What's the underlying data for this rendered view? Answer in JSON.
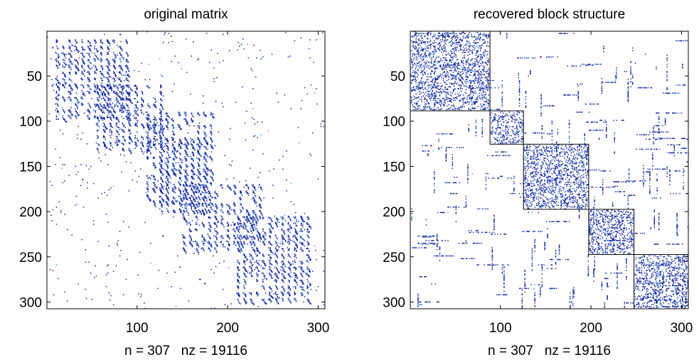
{
  "chart_data": [
    {
      "type": "heatmap",
      "title": "original matrix",
      "xlabel": "n = 307   nz = 19116",
      "ylabel": "",
      "n": 307,
      "nz": 19116,
      "xlim": [
        0.5,
        307.5
      ],
      "ylim": [
        0.5,
        307.5
      ],
      "y_reversed": true,
      "xticks": [
        100,
        200,
        300
      ],
      "yticks": [
        50,
        100,
        150,
        200,
        250,
        300
      ],
      "dense_regions": [
        {
          "row_range": [
            10,
            95
          ],
          "col_range": [
            10,
            90
          ],
          "density": 0.55
        },
        {
          "row_range": [
            60,
            135
          ],
          "col_range": [
            55,
            130
          ],
          "density": 0.4
        },
        {
          "row_range": [
            90,
            190
          ],
          "col_range": [
            110,
            180
          ],
          "density": 0.45
        },
        {
          "row_range": [
            120,
            200
          ],
          "col_range": [
            125,
            175
          ],
          "density": 0.6
        },
        {
          "row_range": [
            170,
            240
          ],
          "col_range": [
            150,
            240
          ],
          "density": 0.4
        },
        {
          "row_range": [
            205,
            300
          ],
          "col_range": [
            210,
            290
          ],
          "density": 0.55
        }
      ],
      "marker_color": "#1428a0",
      "accent_color": "#3fa0e0"
    },
    {
      "type": "heatmap",
      "title": "recovered block structure",
      "xlabel": "n = 307   nz = 19116",
      "ylabel": "",
      "n": 307,
      "nz": 19116,
      "xlim": [
        0.5,
        307.5
      ],
      "ylim": [
        0.5,
        307.5
      ],
      "y_reversed": true,
      "xticks": [
        100,
        200,
        300
      ],
      "yticks": [
        50,
        100,
        150,
        200,
        250,
        300
      ],
      "block_boundaries": [
        0,
        88,
        125,
        197,
        247,
        307
      ],
      "marker_color": "#1428a0",
      "accent_color": "#3fa0e0"
    }
  ]
}
